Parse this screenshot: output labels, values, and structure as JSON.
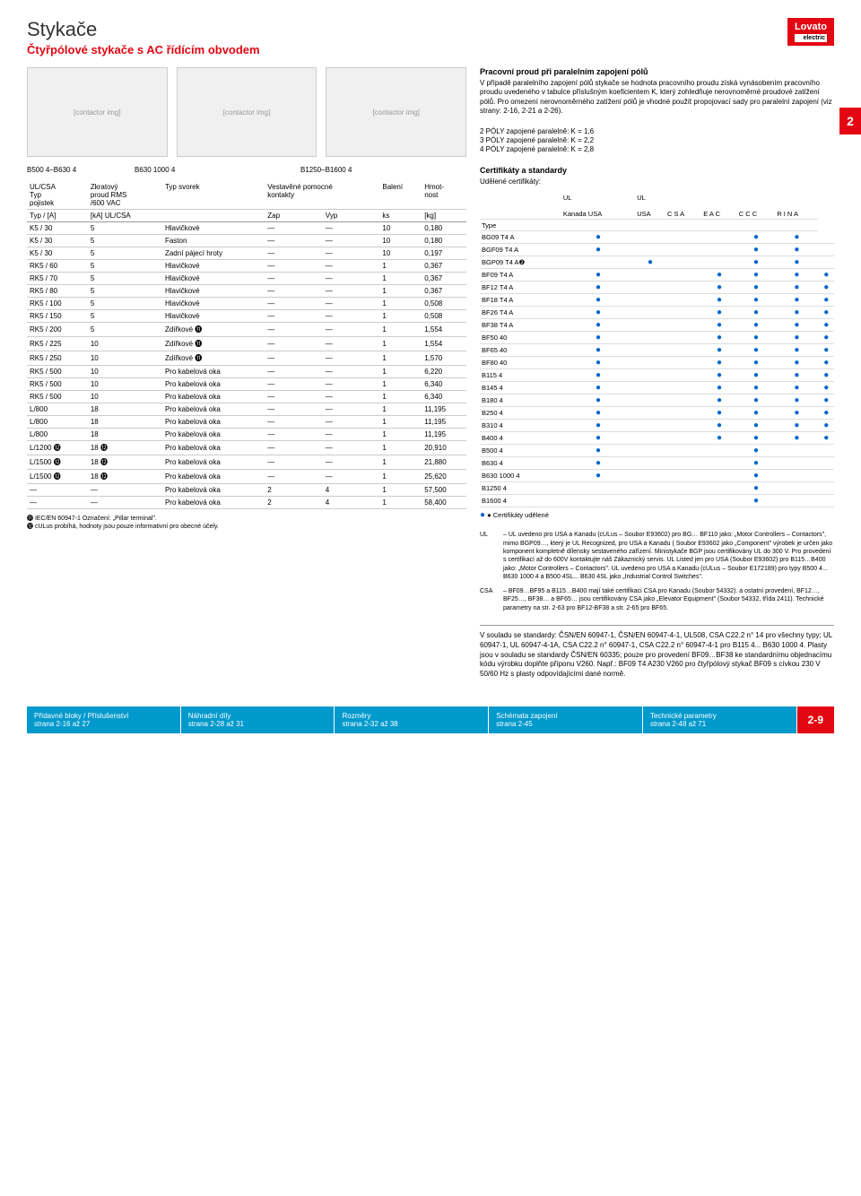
{
  "header": {
    "title": "Stykače",
    "subtitle": "Čtyřpólové stykače s AC řídícím obvodem",
    "logo_main": "Lovato",
    "logo_sub": "electric"
  },
  "page_badge": "2",
  "images": {
    "label1": "B500 4–B630 4",
    "label2": "B630 1000 4",
    "label3": "B1250–B1600 4"
  },
  "main_table": {
    "headers": {
      "c1a": "UL/CSA",
      "c1b": "Typ",
      "c1c": "pojistek",
      "c2a": "Zkratový",
      "c2b": "proud RMS",
      "c2c": "/600 VAC",
      "c3": "Typ svorek",
      "c4a": "Vestavěné pomocné",
      "c4b": "kontakty",
      "c5": "Balení",
      "c6a": "Hmot-",
      "c6b": "nost"
    },
    "sub_headers": {
      "c1": "Typ / [A]",
      "c2": "[kA] UL/CSA",
      "c4a": "Zap",
      "c4b": "Vyp",
      "c5": "ks",
      "c6": "[kg]"
    },
    "rows": [
      {
        "c1": "K5 / 30",
        "c2": "5",
        "c3": "Hlavičkové",
        "c4": "—",
        "c5": "—",
        "c6": "10",
        "c7": "0,180"
      },
      {
        "c1": "K5 / 30",
        "c2": "5",
        "c3": "Faston",
        "c4": "—",
        "c5": "—",
        "c6": "10",
        "c7": "0,180"
      },
      {
        "c1": "K5 / 30",
        "c2": "5",
        "c3": "Zadní pájecí hroty",
        "c4": "—",
        "c5": "—",
        "c6": "10",
        "c7": "0,197"
      },
      {
        "c1": "RK5 / 60",
        "c2": "5",
        "c3": "Hlavičkové",
        "c4": "—",
        "c5": "—",
        "c6": "1",
        "c7": "0,367"
      },
      {
        "c1": "RK5 / 70",
        "c2": "5",
        "c3": "Hlavičkové",
        "c4": "—",
        "c5": "—",
        "c6": "1",
        "c7": "0,367"
      },
      {
        "c1": "RK5 / 80",
        "c2": "5",
        "c3": "Hlavičkové",
        "c4": "—",
        "c5": "—",
        "c6": "1",
        "c7": "0,367"
      },
      {
        "c1": "RK5 / 100",
        "c2": "5",
        "c3": "Hlavičkové",
        "c4": "—",
        "c5": "—",
        "c6": "1",
        "c7": "0,508"
      },
      {
        "c1": "RK5 / 150",
        "c2": "5",
        "c3": "Hlavičkové",
        "c4": "—",
        "c5": "—",
        "c6": "1",
        "c7": "0,508"
      },
      {
        "c1": "RK5 / 200",
        "c2": "5",
        "c3": "Zdířkové ⓫",
        "c4": "—",
        "c5": "—",
        "c6": "1",
        "c7": "1,554"
      },
      {
        "c1": "RK5 / 225",
        "c2": "10",
        "c3": "Zdířkové ⓫",
        "c4": "—",
        "c5": "—",
        "c6": "1",
        "c7": "1,554"
      },
      {
        "c1": "RK5 / 250",
        "c2": "10",
        "c3": "Zdířkové ⓫",
        "c4": "—",
        "c5": "—",
        "c6": "1",
        "c7": "1,570"
      },
      {
        "c1": "RK5 / 500",
        "c2": "10",
        "c3": "Pro kabelová oka",
        "c4": "—",
        "c5": "—",
        "c6": "1",
        "c7": "6,220"
      },
      {
        "c1": "RK5 / 500",
        "c2": "10",
        "c3": "Pro kabelová oka",
        "c4": "—",
        "c5": "—",
        "c6": "1",
        "c7": "6,340"
      },
      {
        "c1": "RK5 / 500",
        "c2": "10",
        "c3": "Pro kabelová oka",
        "c4": "—",
        "c5": "—",
        "c6": "1",
        "c7": "6,340"
      },
      {
        "c1": "L/800",
        "c2": "18",
        "c3": "Pro kabelová oka",
        "c4": "—",
        "c5": "—",
        "c6": "1",
        "c7": "11,195"
      },
      {
        "c1": "L/800",
        "c2": "18",
        "c3": "Pro kabelová oka",
        "c4": "—",
        "c5": "—",
        "c6": "1",
        "c7": "11,195"
      },
      {
        "c1": "L/800",
        "c2": "18",
        "c3": "Pro kabelová oka",
        "c4": "—",
        "c5": "—",
        "c6": "1",
        "c7": "11,195"
      },
      {
        "c1": "L/1200 ⓬",
        "c2": "18 ⓬",
        "c3": "Pro kabelová oka",
        "c4": "—",
        "c5": "—",
        "c6": "1",
        "c7": "20,910"
      },
      {
        "c1": "L/1500 ⓬",
        "c2": "18 ⓬",
        "c3": "Pro kabelová oka",
        "c4": "—",
        "c5": "—",
        "c6": "1",
        "c7": "21,880"
      },
      {
        "c1": "L/1500 ⓬",
        "c2": "18 ⓬",
        "c3": "Pro kabelová oka",
        "c4": "—",
        "c5": "—",
        "c6": "1",
        "c7": "25,620"
      },
      {
        "c1": "—",
        "c2": "—",
        "c3": "Pro kabelová oka",
        "c4": "2",
        "c5": "4",
        "c6": "1",
        "c7": "57,500"
      },
      {
        "c1": "—",
        "c2": "—",
        "c3": "Pro kabelová oka",
        "c4": "2",
        "c5": "4",
        "c6": "1",
        "c7": "58,400"
      }
    ],
    "footnote1": "⓫ IEC/EN 60947-1 Označení: „Pillar terminal\".",
    "footnote2": "⓬ cULus probíhá, hodnoty jsou pouze informativní pro obecné účely."
  },
  "right": {
    "box1": {
      "title": "Pracovní proud při paralelním zapojení pólů",
      "text": "V případě paralelního zapojení pólů stykače se hodnota pracovního proudu získá vynásobením pracovního proudu uvedeného v tabulce příslušným koeficientem K, který zohledňuje nerovnoměrné proudové zatížení pólů. Pro omezení nerovnoměrného zatížení pólů je vhodné použít propojovací sady pro paralelní zapojení (viz strany: 2-16, 2-21 a 2-26)."
    },
    "poles": {
      "l1": "2 PÓLY zapojené paralelně: K = 1,6",
      "l2": "3 PÓLY zapojené paralelně: K = 2,2",
      "l3": "4 PÓLY zapojené paralelně: K = 2,8"
    },
    "cert": {
      "title": "Certifikáty a standardy",
      "subtitle": "Udělené certifikáty:",
      "cols": {
        "type": "Type",
        "ul_ca": "UL",
        "ul_ca2": "Kanada USA",
        "ul_us": "UL",
        "ul_us2": "USA",
        "csa": "C S A",
        "eac": "E A C",
        "ccc": "C C C",
        "rina": "R I N A"
      },
      "rows": [
        {
          "t": "BG09 T4 A",
          "d": [
            1,
            0,
            0,
            0,
            1,
            1,
            0
          ]
        },
        {
          "t": "BGF09 T4 A",
          "d": [
            1,
            0,
            0,
            0,
            1,
            1,
            0
          ]
        },
        {
          "t": "BGP09 T4 A❷",
          "d": [
            0,
            1,
            0,
            0,
            1,
            1,
            0
          ]
        },
        {
          "t": "BF09 T4 A",
          "d": [
            1,
            0,
            0,
            1,
            1,
            1,
            1
          ]
        },
        {
          "t": "BF12 T4 A",
          "d": [
            1,
            0,
            0,
            1,
            1,
            1,
            1
          ]
        },
        {
          "t": "BF18 T4 A",
          "d": [
            1,
            0,
            0,
            1,
            1,
            1,
            1
          ]
        },
        {
          "t": "BF26 T4 A",
          "d": [
            1,
            0,
            0,
            1,
            1,
            1,
            1
          ]
        },
        {
          "t": "BF38 T4 A",
          "d": [
            1,
            0,
            0,
            1,
            1,
            1,
            1
          ]
        },
        {
          "t": "BF50 40",
          "d": [
            1,
            0,
            0,
            1,
            1,
            1,
            1
          ]
        },
        {
          "t": "BF65 40",
          "d": [
            1,
            0,
            0,
            1,
            1,
            1,
            1
          ]
        },
        {
          "t": "BF80 40",
          "d": [
            1,
            0,
            0,
            1,
            1,
            1,
            1
          ]
        },
        {
          "t": "B115 4",
          "d": [
            1,
            0,
            0,
            1,
            1,
            1,
            1
          ]
        },
        {
          "t": "B145 4",
          "d": [
            1,
            0,
            0,
            1,
            1,
            1,
            1
          ]
        },
        {
          "t": "B180 4",
          "d": [
            1,
            0,
            0,
            1,
            1,
            1,
            1
          ]
        },
        {
          "t": "B250 4",
          "d": [
            1,
            0,
            0,
            1,
            1,
            1,
            1
          ]
        },
        {
          "t": "B310 4",
          "d": [
            1,
            0,
            0,
            1,
            1,
            1,
            1
          ]
        },
        {
          "t": "B400 4",
          "d": [
            1,
            0,
            0,
            1,
            1,
            1,
            1
          ]
        },
        {
          "t": "B500 4",
          "d": [
            1,
            0,
            0,
            0,
            1,
            0,
            0
          ]
        },
        {
          "t": "B630 4",
          "d": [
            1,
            0,
            0,
            0,
            1,
            0,
            0
          ]
        },
        {
          "t": "B630 1000 4",
          "d": [
            1,
            0,
            0,
            0,
            1,
            0,
            0
          ]
        },
        {
          "t": "B1250 4",
          "d": [
            0,
            0,
            0,
            0,
            1,
            0,
            0
          ]
        },
        {
          "t": "B1600 4",
          "d": [
            0,
            0,
            0,
            0,
            1,
            0,
            0
          ]
        }
      ],
      "legend": "● Certifikáty udělené"
    },
    "cert_notes": {
      "ul_label": "UL",
      "ul_text": "– UL uvedeno pro USA a Kanadu (cULus – Soubor E93602) pro BG… BF110  jako: „Motor Controllers – Contactors\", mimo BGP09…, který je UL Recognized, pro USA a Kanadu ( Soubor E93602 jako „Component\" výrobek je určen jako komponent kompletně dílensky sestaveného zařízení. Ministykače BGP jsou certifikovány UL do 300 V. Pro provedení s certifikací až do 600V kontaktujte náš Zákaznický servis. UL Listed jen pro USA (Soubor E93602) pro B115…B400 jako: „Motor Controllers – Contactors\". UL uvedeno pro USA a Kanadu (cULus – Soubor E172189) pro typy B500 4... B630 1000 4 a B500 4SL... B630 4SL jako „Industrial Control Switches\".",
      "csa_label": "CSA",
      "csa_text": "– BF09…BF95 a B115…B400 mají také certifikaci CSA pro Kanadu (Soubor 54332). a ostatní provedení, BF12…, BF25…, BF38… a BF65… jsou certifikovány CSA jako „Elevator Equipment\" (Soubor 54332, třída 2411). Technické parametry na str. 2-63 pro BF12-BF38 a str. 2-65 pro BF65."
    },
    "standards": "V souladu se standardy: ČSN/EN 60947-1, ČSN/EN 60947-4-1, UL508, CSA C22.2 n° 14 pro všechny typy; UL 60947-1, UL 60947-4-1A, CSA C22.2 n° 60947-1, CSA C22.2 n° 60947-4-1 pro B115 4... B630 1000 4. Plasty jsou v souladu se standardy ČSN/EN 60335; pouze pro provedení BF09…BF38 ke standardnímu objednacímu kódu výrobku doplňte příponu V260. Např.: BF09 T4 A230 V260 pro čtyřpólový stykač BF09 s cívkou 230 V 50/60 Hz s plasty odpovídajícími dané normě."
  },
  "nav": [
    {
      "l1": "Přídavné bloky / Příslušenství",
      "l2": "strana 2-16 až 27"
    },
    {
      "l1": "Náhradní díly",
      "l2": "strana 2-28 až 31"
    },
    {
      "l1": "Rozměry",
      "l2": "strana 2-32 až 38"
    },
    {
      "l1": "Schémata zapojení",
      "l2": "strana 2-45"
    },
    {
      "l1": "Technické parametry",
      "l2": "strana 2-48 až 71"
    }
  ],
  "page_num": "2-9"
}
